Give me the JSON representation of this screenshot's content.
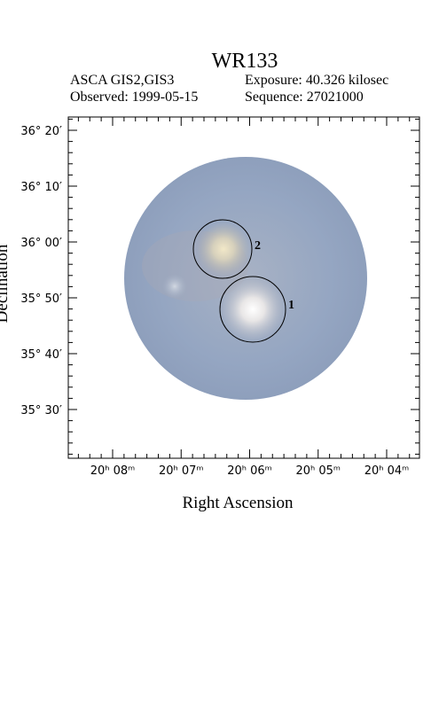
{
  "header": {
    "title": "WR133",
    "instrument": "ASCA GIS2,GIS3",
    "exposure": "Exposure: 40.326 kilosec",
    "observed": "Observed: 1999-05-15",
    "sequence": "Sequence: 27021000"
  },
  "axes": {
    "x_label": "Right Ascension",
    "y_label": "Declination",
    "x_ticks": [
      "20ʰ 08ᵐ",
      "20ʰ 07ᵐ",
      "20ʰ 06ᵐ",
      "20ʰ 05ᵐ",
      "20ʰ 04ᵐ"
    ],
    "y_ticks": [
      "36° 20′",
      "36° 10′",
      "36° 00′",
      "35° 50′",
      "35° 40′",
      "35° 30′"
    ]
  },
  "sources": [
    {
      "label": "1"
    },
    {
      "label": "2"
    }
  ]
}
